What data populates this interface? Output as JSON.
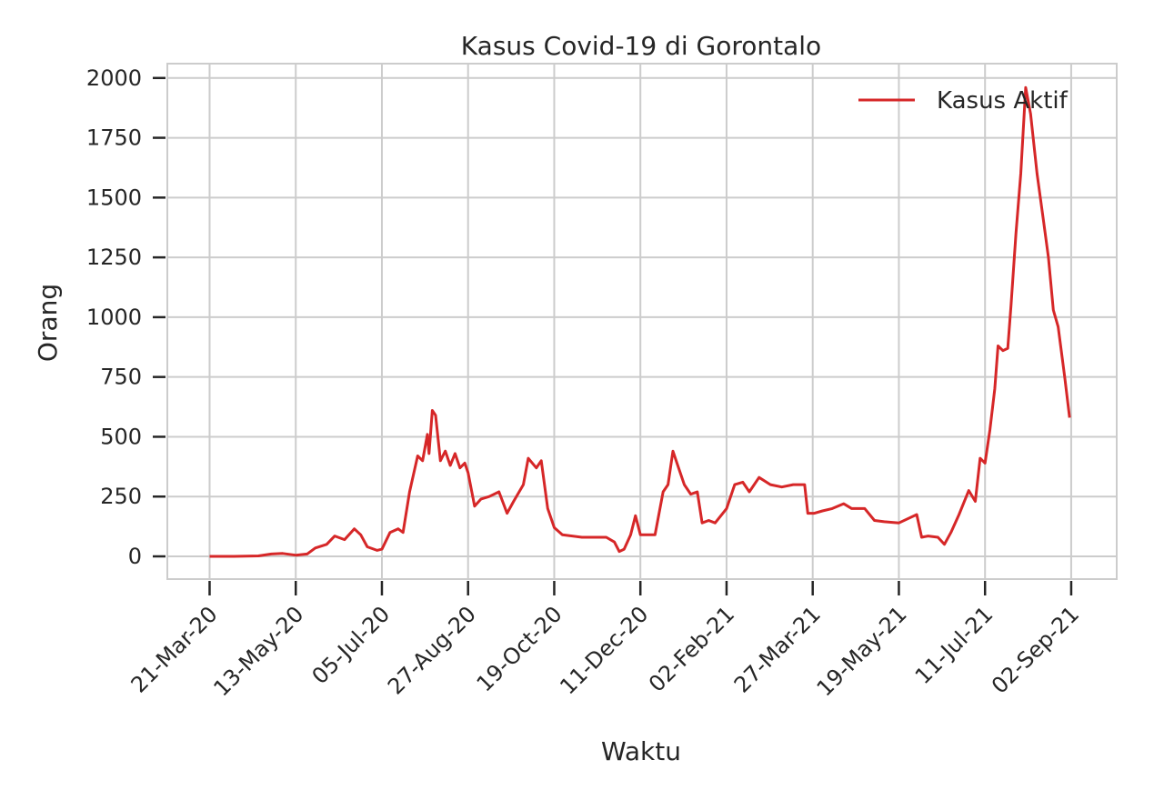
{
  "chart_data": {
    "type": "line",
    "title": "Kasus Covid-19 di Gorontalo",
    "xlabel": "Waktu",
    "ylabel": "Orang",
    "x_ticks": [
      "21-Mar-20",
      "13-May-20",
      "05-Jul-20",
      "27-Aug-20",
      "19-Oct-20",
      "11-Dec-20",
      "02-Feb-21",
      "27-Mar-21",
      "19-May-21",
      "11-Jul-21",
      "02-Sep-21"
    ],
    "y_ticks": [
      0,
      250,
      500,
      750,
      1000,
      1250,
      1500,
      1750,
      2000
    ],
    "ylim": [
      -95,
      2060
    ],
    "xlim": [
      "2020-02-24",
      "2021-09-30"
    ],
    "grid": true,
    "legend_position": "top-right",
    "series": [
      {
        "name": "Kasus Aktif",
        "color": "#d62728",
        "points": [
          [
            "2020-03-21",
            0
          ],
          [
            "2020-04-05",
            0
          ],
          [
            "2020-04-20",
            2
          ],
          [
            "2020-04-28",
            10
          ],
          [
            "2020-05-05",
            12
          ],
          [
            "2020-05-13",
            5
          ],
          [
            "2020-05-20",
            10
          ],
          [
            "2020-05-25",
            35
          ],
          [
            "2020-06-01",
            50
          ],
          [
            "2020-06-06",
            85
          ],
          [
            "2020-06-12",
            70
          ],
          [
            "2020-06-18",
            115
          ],
          [
            "2020-06-22",
            90
          ],
          [
            "2020-06-26",
            40
          ],
          [
            "2020-07-02",
            25
          ],
          [
            "2020-07-05",
            30
          ],
          [
            "2020-07-10",
            100
          ],
          [
            "2020-07-15",
            115
          ],
          [
            "2020-07-18",
            100
          ],
          [
            "2020-07-22",
            270
          ],
          [
            "2020-07-27",
            420
          ],
          [
            "2020-07-30",
            400
          ],
          [
            "2020-08-02",
            510
          ],
          [
            "2020-08-03",
            430
          ],
          [
            "2020-08-05",
            610
          ],
          [
            "2020-08-07",
            590
          ],
          [
            "2020-08-10",
            400
          ],
          [
            "2020-08-13",
            440
          ],
          [
            "2020-08-16",
            380
          ],
          [
            "2020-08-19",
            430
          ],
          [
            "2020-08-22",
            370
          ],
          [
            "2020-08-25",
            390
          ],
          [
            "2020-08-27",
            350
          ],
          [
            "2020-08-31",
            210
          ],
          [
            "2020-09-04",
            240
          ],
          [
            "2020-09-09",
            250
          ],
          [
            "2020-09-15",
            270
          ],
          [
            "2020-09-20",
            180
          ],
          [
            "2020-09-24",
            230
          ],
          [
            "2020-09-30",
            300
          ],
          [
            "2020-10-03",
            410
          ],
          [
            "2020-10-08",
            370
          ],
          [
            "2020-10-11",
            400
          ],
          [
            "2020-10-15",
            200
          ],
          [
            "2020-10-19",
            120
          ],
          [
            "2020-10-24",
            90
          ],
          [
            "2020-11-05",
            80
          ],
          [
            "2020-11-20",
            80
          ],
          [
            "2020-11-25",
            60
          ],
          [
            "2020-11-28",
            20
          ],
          [
            "2020-12-01",
            30
          ],
          [
            "2020-12-05",
            90
          ],
          [
            "2020-12-08",
            170
          ],
          [
            "2020-12-11",
            90
          ],
          [
            "2020-12-15",
            90
          ],
          [
            "2020-12-20",
            90
          ],
          [
            "2020-12-25",
            270
          ],
          [
            "2020-12-28",
            300
          ],
          [
            "2020-12-31",
            440
          ],
          [
            "2021-01-03",
            380
          ],
          [
            "2021-01-07",
            300
          ],
          [
            "2021-01-11",
            260
          ],
          [
            "2021-01-15",
            270
          ],
          [
            "2021-01-18",
            140
          ],
          [
            "2021-01-22",
            150
          ],
          [
            "2021-01-26",
            140
          ],
          [
            "2021-02-02",
            200
          ],
          [
            "2021-02-07",
            300
          ],
          [
            "2021-02-12",
            310
          ],
          [
            "2021-02-16",
            270
          ],
          [
            "2021-02-22",
            330
          ],
          [
            "2021-03-01",
            300
          ],
          [
            "2021-03-08",
            290
          ],
          [
            "2021-03-15",
            300
          ],
          [
            "2021-03-22",
            300
          ],
          [
            "2021-03-24",
            180
          ],
          [
            "2021-03-28",
            180
          ],
          [
            "2021-04-02",
            190
          ],
          [
            "2021-04-08",
            200
          ],
          [
            "2021-04-15",
            220
          ],
          [
            "2021-04-20",
            200
          ],
          [
            "2021-04-28",
            200
          ],
          [
            "2021-05-04",
            150
          ],
          [
            "2021-05-10",
            145
          ],
          [
            "2021-05-19",
            140
          ],
          [
            "2021-05-30",
            175
          ],
          [
            "2021-06-02",
            80
          ],
          [
            "2021-06-06",
            85
          ],
          [
            "2021-06-12",
            80
          ],
          [
            "2021-06-16",
            50
          ],
          [
            "2021-06-20",
            100
          ],
          [
            "2021-06-25",
            175
          ],
          [
            "2021-07-01",
            275
          ],
          [
            "2021-07-05",
            230
          ],
          [
            "2021-07-08",
            410
          ],
          [
            "2021-07-11",
            390
          ],
          [
            "2021-07-14",
            530
          ],
          [
            "2021-07-17",
            700
          ],
          [
            "2021-07-19",
            880
          ],
          [
            "2021-07-22",
            860
          ],
          [
            "2021-07-25",
            870
          ],
          [
            "2021-07-27",
            1050
          ],
          [
            "2021-07-30",
            1350
          ],
          [
            "2021-08-02",
            1600
          ],
          [
            "2021-08-05",
            1960
          ],
          [
            "2021-08-08",
            1850
          ],
          [
            "2021-08-12",
            1600
          ],
          [
            "2021-08-16",
            1400
          ],
          [
            "2021-08-19",
            1250
          ],
          [
            "2021-08-22",
            1030
          ],
          [
            "2021-08-25",
            960
          ],
          [
            "2021-08-29",
            750
          ],
          [
            "2021-09-01",
            580
          ]
        ]
      }
    ]
  }
}
